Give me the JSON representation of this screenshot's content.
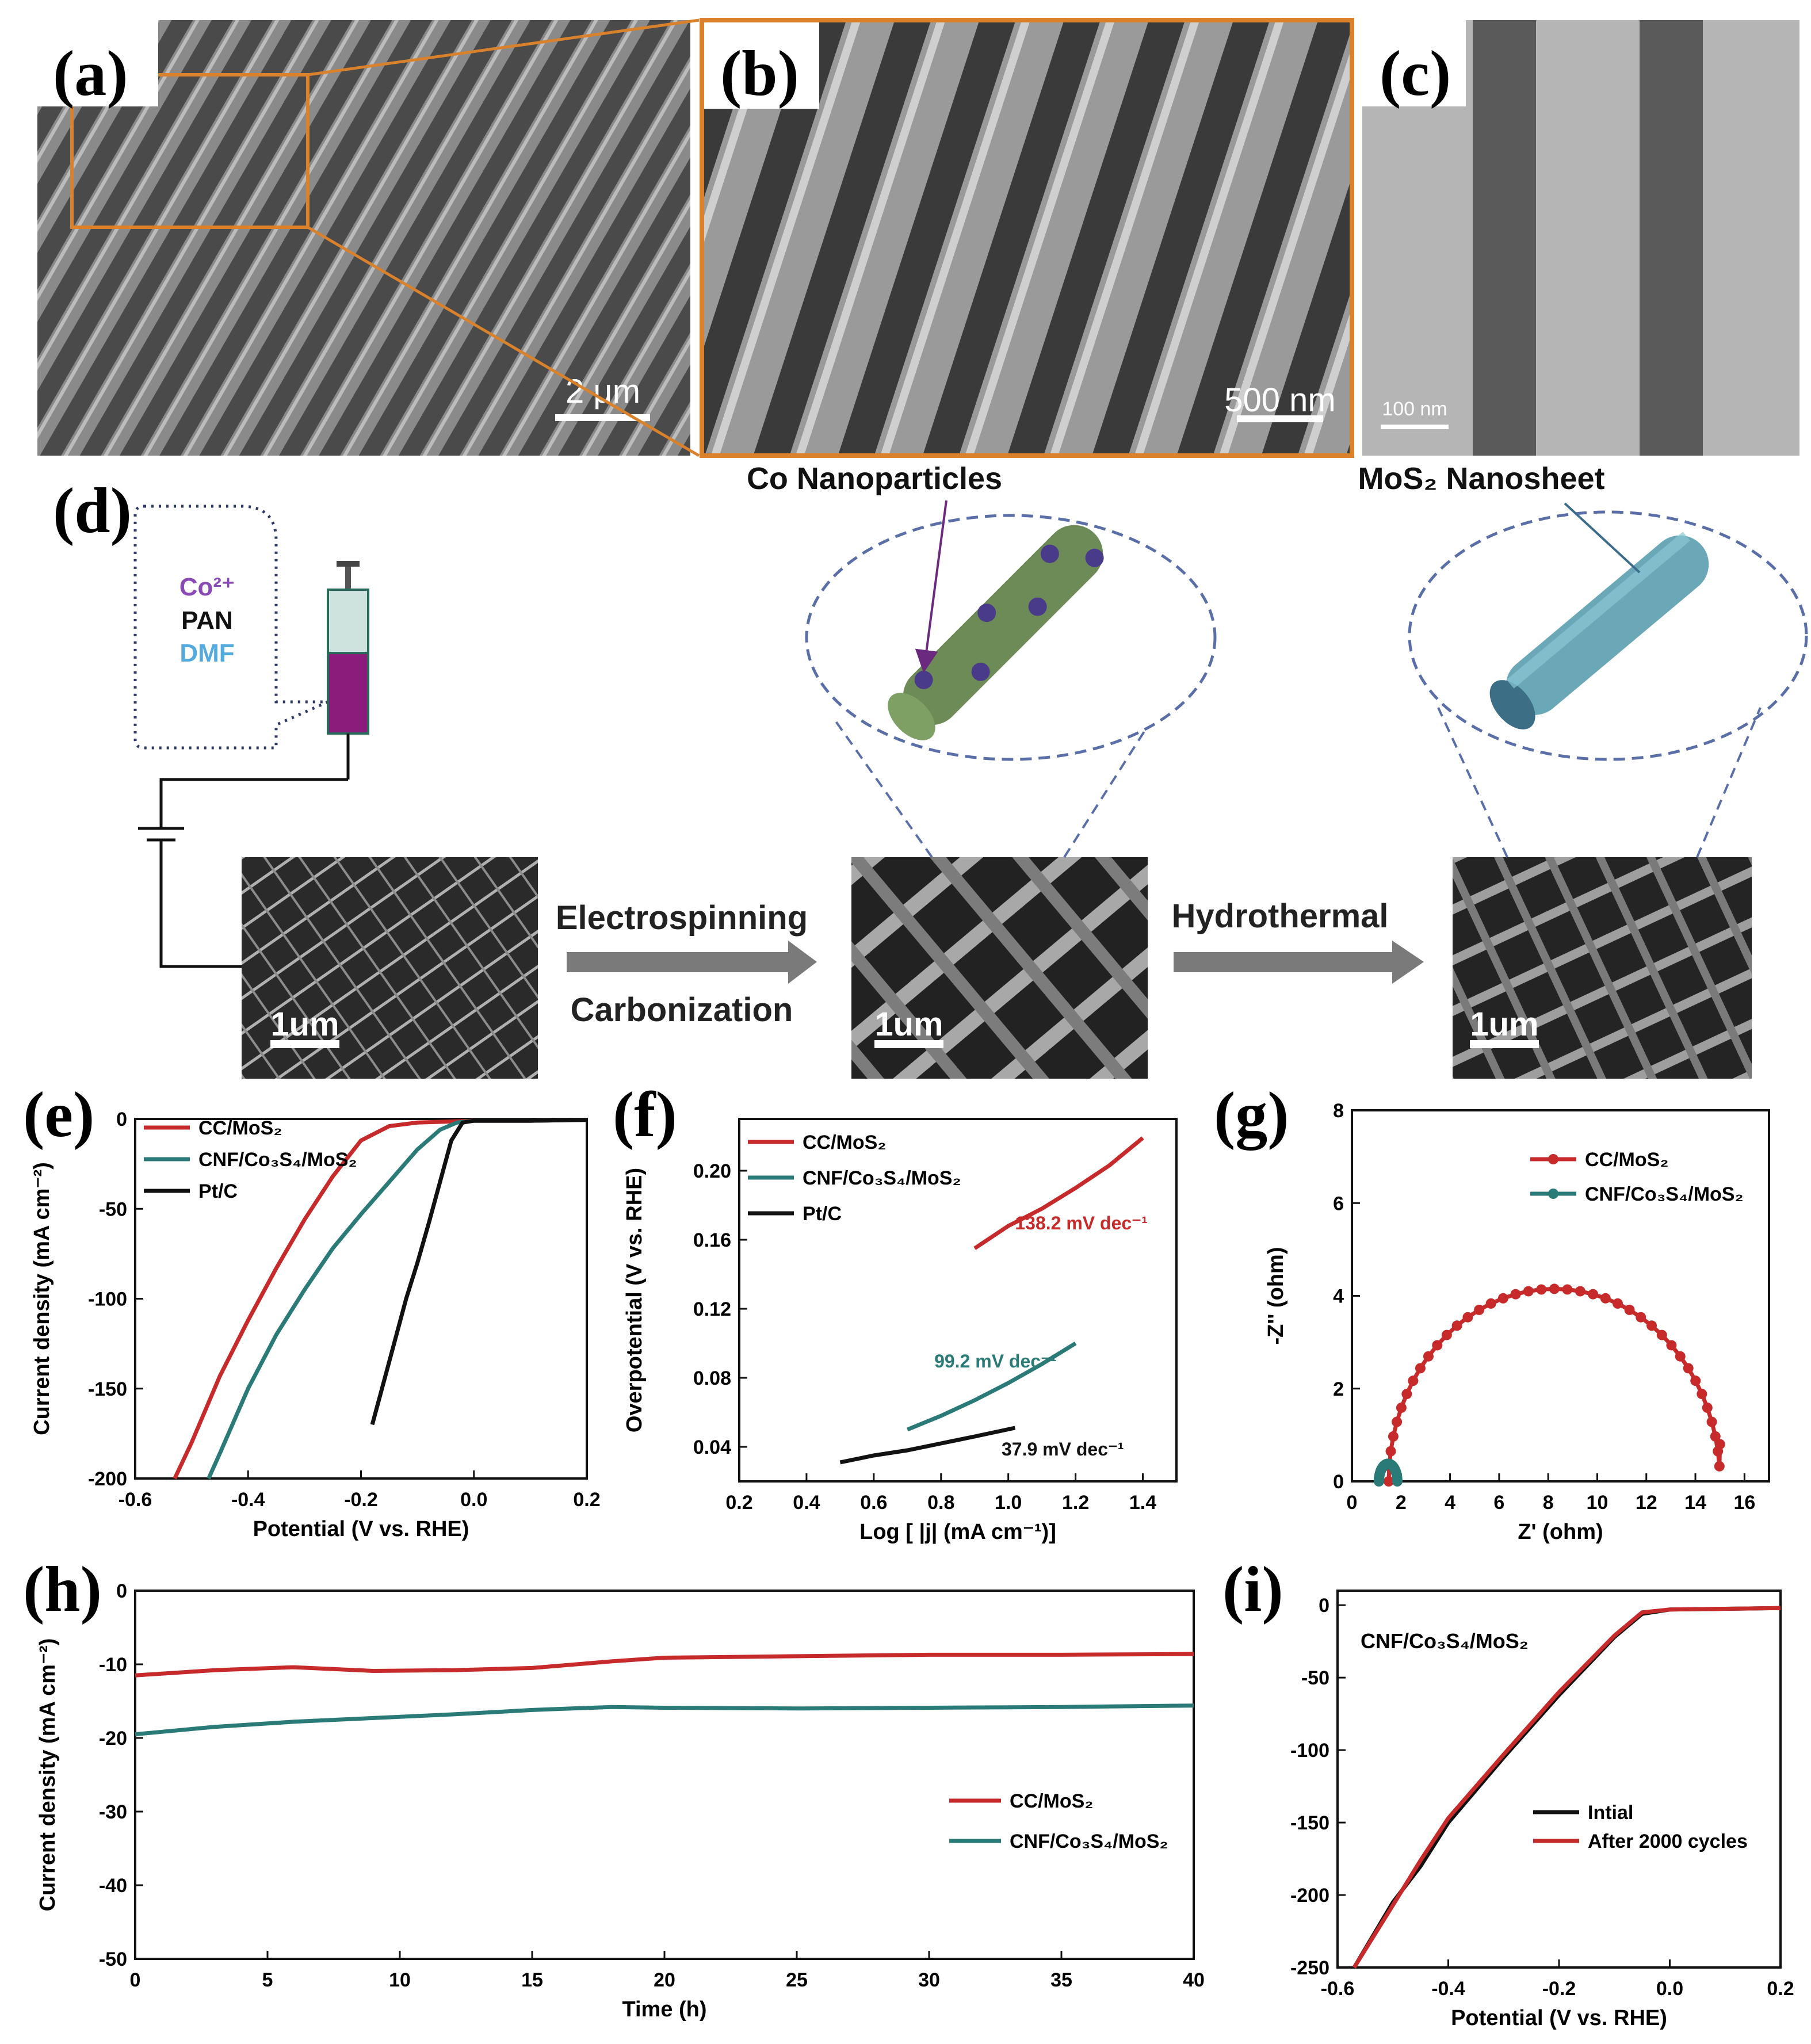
{
  "panel_letters": {
    "a": "(a)",
    "b": "(b)",
    "c": "(c)",
    "d": "(d)",
    "e": "(e)",
    "f": "(f)",
    "g": "(g)",
    "h": "(h)",
    "i": "(i)"
  },
  "scalebars": {
    "a": "2 μm",
    "b": "500 nm",
    "c": "100 nm",
    "d1": "1um",
    "d2": "1um",
    "d3": "1um"
  },
  "schematic": {
    "solution": {
      "co": "Co²⁺",
      "pan": "PAN",
      "dmf": "DMF"
    },
    "co_np_label": "Co Nanoparticles",
    "mos2_label": "MoS₂ Nanosheet",
    "step1_top": "Electrospinning",
    "step1_bottom": "Carbonization",
    "step2": "Hydrothermal"
  },
  "colors": {
    "red": "#c62a2a",
    "teal": "#2a7b77",
    "black": "#111111",
    "orange": "#d9822b",
    "purple": "#6b2a7d"
  },
  "chart_data": [
    {
      "id": "e",
      "type": "line",
      "xlabel": "Potential (V vs. RHE)",
      "ylabel": "Current density (mA cm⁻²)",
      "xlim": [
        -0.6,
        0.2
      ],
      "ylim": [
        -200,
        0
      ],
      "xticks": [
        -0.6,
        -0.4,
        -0.2,
        0.0,
        0.2
      ],
      "xtick_labels": [
        "-0.6",
        "-0.4",
        "-0.2",
        "0.0",
        "0.2"
      ],
      "yticks": [
        0,
        -50,
        -100,
        -150,
        -200
      ],
      "ytick_labels": [
        "0",
        "-50",
        "-100",
        "-150",
        "-200"
      ],
      "legend": "top-left",
      "series": [
        {
          "name": "CC/MoS₂",
          "color": "#c62a2a",
          "x": [
            -0.53,
            -0.5,
            -0.45,
            -0.4,
            -0.35,
            -0.3,
            -0.25,
            -0.2,
            -0.15,
            -0.1,
            -0.05,
            0.0,
            0.1,
            0.2
          ],
          "y": [
            -200,
            -180,
            -143,
            -112,
            -83,
            -56,
            -32,
            -12,
            -4,
            -2,
            -1.5,
            -1,
            -1,
            -0.5
          ]
        },
        {
          "name": "CNF/Co₃S₄/MoS₂",
          "color": "#2a7b77",
          "x": [
            -0.47,
            -0.45,
            -0.4,
            -0.35,
            -0.3,
            -0.25,
            -0.2,
            -0.15,
            -0.1,
            -0.06,
            -0.03,
            0.0,
            0.1,
            0.2
          ],
          "y": [
            -200,
            -186,
            -150,
            -120,
            -95,
            -72,
            -53,
            -35,
            -17,
            -6,
            -2,
            -1,
            -1,
            -0.5
          ]
        },
        {
          "name": "Pt/C",
          "color": "#111111",
          "x": [
            -0.18,
            -0.15,
            -0.12,
            -0.1,
            -0.08,
            -0.06,
            -0.04,
            -0.02,
            0.0,
            0.1,
            0.2
          ],
          "y": [
            -170,
            -135,
            -100,
            -80,
            -58,
            -35,
            -12,
            -2,
            -1,
            -1,
            -0.5
          ]
        }
      ]
    },
    {
      "id": "f",
      "type": "line",
      "xlabel": "Log [ |j| (mA cm⁻¹)]",
      "ylabel": "Overpotential (V vs. RHE)",
      "xlim": [
        0.2,
        1.5
      ],
      "ylim": [
        0.02,
        0.23
      ],
      "xticks": [
        0.2,
        0.4,
        0.6,
        0.8,
        1.0,
        1.2,
        1.4
      ],
      "xtick_labels": [
        "0.2",
        "0.4",
        "0.6",
        "0.8",
        "1.0",
        "1.2",
        "1.4"
      ],
      "yticks": [
        0.04,
        0.08,
        0.12,
        0.16,
        0.2
      ],
      "ytick_labels": [
        "0.04",
        "0.08",
        "0.12",
        "0.16",
        "0.20"
      ],
      "legend": "top-left",
      "series": [
        {
          "name": "CC/MoS₂",
          "color": "#c62a2a",
          "x": [
            0.9,
            1.0,
            1.1,
            1.2,
            1.3,
            1.4
          ],
          "y": [
            0.155,
            0.168,
            0.178,
            0.19,
            0.203,
            0.219
          ]
        },
        {
          "name": "CNF/Co₃S₄/MoS₂",
          "color": "#2a7b77",
          "x": [
            0.7,
            0.8,
            0.9,
            1.0,
            1.1,
            1.2
          ],
          "y": [
            0.05,
            0.058,
            0.067,
            0.077,
            0.088,
            0.1
          ]
        },
        {
          "name": "Pt/C",
          "color": "#111111",
          "x": [
            0.5,
            0.6,
            0.7,
            0.8,
            0.9,
            1.02
          ],
          "y": [
            0.031,
            0.035,
            0.038,
            0.042,
            0.046,
            0.051
          ]
        }
      ],
      "annotations": [
        {
          "text": "138.2 mV dec⁻¹",
          "color": "#c62a2a",
          "x": 1.02,
          "y": 0.166
        },
        {
          "text": "99.2 mV dec⁻¹",
          "color": "#2a7b77",
          "x": 0.78,
          "y": 0.086
        },
        {
          "text": "37.9 mV dec⁻¹",
          "color": "#111111",
          "x": 0.98,
          "y": 0.035
        }
      ]
    },
    {
      "id": "g",
      "type": "scatter",
      "xlabel": "Z' (ohm)",
      "ylabel": "-Z'' (ohm)",
      "xlim": [
        0,
        17
      ],
      "ylim": [
        0,
        8
      ],
      "xticks": [
        0,
        2,
        4,
        6,
        8,
        10,
        12,
        14,
        16
      ],
      "xtick_labels": [
        "0",
        "2",
        "4",
        "6",
        "8",
        "10",
        "12",
        "14",
        "16"
      ],
      "yticks": [
        0,
        2,
        4,
        6,
        8
      ],
      "ytick_labels": [
        "0",
        "2",
        "4",
        "6",
        "8"
      ],
      "legend": "top-right",
      "series": [
        {
          "name": "CC/MoS₂",
          "color": "#c62a2a",
          "arc": {
            "x_start": 1.5,
            "x_end": 15.0,
            "peak": 4.15,
            "end_y": 0.8
          }
        },
        {
          "name": "CNF/Co₃S₄/MoS₂",
          "color": "#2a7b77",
          "arc": {
            "x_start": 1.1,
            "x_end": 1.85,
            "peak": 0.38,
            "end_y": 0.0
          }
        }
      ]
    },
    {
      "id": "h",
      "type": "line",
      "xlabel": "Time (h)",
      "ylabel": "Current density (mA cm⁻²)",
      "xlim": [
        0,
        40
      ],
      "ylim": [
        -50,
        0
      ],
      "xticks": [
        0,
        5,
        10,
        15,
        20,
        25,
        30,
        35,
        40
      ],
      "xtick_labels": [
        "0",
        "5",
        "10",
        "15",
        "20",
        "25",
        "30",
        "35",
        "40"
      ],
      "yticks": [
        0,
        -10,
        -20,
        -30,
        -40,
        -50
      ],
      "ytick_labels": [
        "0",
        "-10",
        "-20",
        "-30",
        "-40",
        "-50"
      ],
      "legend": "lower-right",
      "series": [
        {
          "name": "CC/MoS₂",
          "color": "#c62a2a",
          "x": [
            0,
            3,
            6,
            9,
            12,
            15,
            18,
            20,
            25,
            30,
            35,
            40
          ],
          "y": [
            -11.5,
            -10.8,
            -10.4,
            -10.9,
            -10.8,
            -10.5,
            -9.6,
            -9.1,
            -8.9,
            -8.7,
            -8.7,
            -8.6
          ]
        },
        {
          "name": "CNF/Co₃S₄/MoS₂",
          "color": "#2a7b77",
          "x": [
            0,
            3,
            6,
            9,
            12,
            15,
            18,
            20,
            25,
            30,
            35,
            40
          ],
          "y": [
            -19.5,
            -18.5,
            -17.8,
            -17.3,
            -16.8,
            -16.2,
            -15.8,
            -15.9,
            -16.0,
            -15.9,
            -15.8,
            -15.6
          ]
        }
      ]
    },
    {
      "id": "i",
      "type": "line",
      "xlabel": "Potential (V vs. RHE)",
      "ylabel": "",
      "xlim": [
        -0.6,
        0.2
      ],
      "ylim": [
        -250,
        10
      ],
      "xticks": [
        -0.6,
        -0.4,
        -0.2,
        0.0,
        0.2
      ],
      "xtick_labels": [
        "-0.6",
        "-0.4",
        "-0.2",
        "0.0",
        "0.2"
      ],
      "yticks": [
        0,
        -50,
        -100,
        -150,
        -200,
        -250
      ],
      "ytick_labels": [
        "0",
        "-50",
        "-100",
        "-150",
        "-200",
        "-250"
      ],
      "legend": "lower-left",
      "text": "CNF/Co₃S₄/MoS₂",
      "series": [
        {
          "name": "Intial",
          "color": "#111111",
          "x": [
            -0.57,
            -0.5,
            -0.45,
            -0.4,
            -0.3,
            -0.2,
            -0.1,
            -0.05,
            0.0,
            0.1,
            0.2
          ],
          "y": [
            -250,
            -205,
            -180,
            -150,
            -105,
            -62,
            -22,
            -6,
            -3,
            -2.5,
            -2
          ]
        },
        {
          "name": "After 2000 cycles",
          "color": "#c62a2a",
          "x": [
            -0.57,
            -0.5,
            -0.45,
            -0.4,
            -0.3,
            -0.2,
            -0.1,
            -0.05,
            0.0,
            0.1,
            0.2
          ],
          "y": [
            -250,
            -207,
            -176,
            -147,
            -103,
            -60,
            -21,
            -5,
            -3,
            -2.5,
            -2
          ]
        }
      ]
    }
  ]
}
